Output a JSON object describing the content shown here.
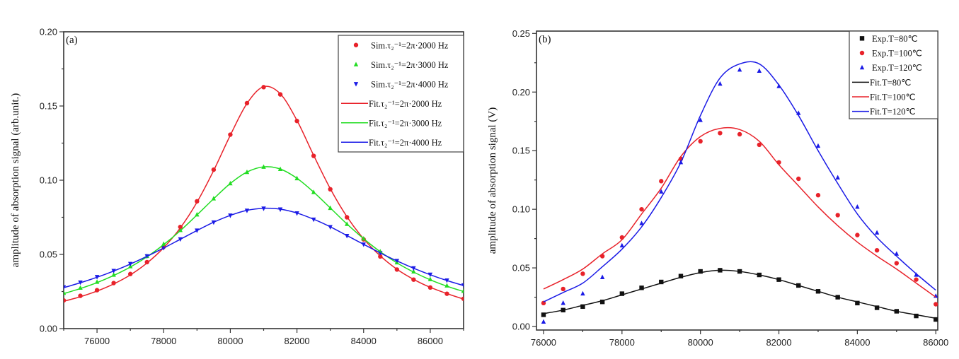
{
  "chart_data": [
    {
      "type": "scatter",
      "panel_label": "(a)",
      "xlabel": "",
      "ylabel": "amplitude of absorption signal (arb.unit.)",
      "xlim": [
        75000,
        87000
      ],
      "ylim": [
        0,
        0.2
      ],
      "xticks": [
        76000,
        78000,
        80000,
        82000,
        84000,
        86000
      ],
      "xtick_labels": [
        "76000",
        "78000",
        "80000",
        "82000",
        "84000",
        "86000"
      ],
      "yticks": [
        0,
        0.05,
        0.1,
        0.15,
        0.2
      ],
      "ytick_labels": [
        "0.00",
        "0.05",
        "0.10",
        "0.15",
        "0.20"
      ],
      "grid": false,
      "legend_position": "top-right",
      "x": [
        75000,
        75500,
        76000,
        76500,
        77000,
        77500,
        78000,
        78500,
        79000,
        79500,
        80000,
        80500,
        81000,
        81500,
        82000,
        82500,
        83000,
        83500,
        84000,
        84500,
        85000,
        85500,
        86000,
        86500,
        87000
      ],
      "series": [
        {
          "name": "Sim.τ₂⁻¹=2π·2000 Hz",
          "kind": "marker",
          "marker": "circle",
          "color": "#e8222a",
          "values": [
            0.019,
            0.0221,
            0.0259,
            0.0307,
            0.0368,
            0.0448,
            0.0551,
            0.0685,
            0.0858,
            0.1071,
            0.1307,
            0.1519,
            0.1627,
            0.1578,
            0.1399,
            0.1164,
            0.0939,
            0.075,
            0.0601,
            0.0486,
            0.0398,
            0.033,
            0.0277,
            0.0235,
            0.0201
          ]
        },
        {
          "name": "Sim.τ₂⁻¹=2π·3000 Hz",
          "kind": "marker",
          "marker": "triangle-up",
          "color": "#22dd22",
          "values": [
            0.024,
            0.0274,
            0.0314,
            0.0362,
            0.0419,
            0.0488,
            0.057,
            0.0663,
            0.0768,
            0.0876,
            0.0978,
            0.1054,
            0.1089,
            0.1074,
            0.1012,
            0.0919,
            0.0812,
            0.0704,
            0.0606,
            0.0519,
            0.0445,
            0.0384,
            0.0332,
            0.0289,
            0.0253
          ]
        },
        {
          "name": "Sim.τ₂⁻¹=2π·4000 Hz",
          "kind": "marker",
          "marker": "triangle-down",
          "color": "#1a1ae6",
          "values": [
            0.028,
            0.0312,
            0.0349,
            0.039,
            0.0437,
            0.0489,
            0.0544,
            0.0603,
            0.0662,
            0.0717,
            0.0763,
            0.0796,
            0.081,
            0.0804,
            0.0778,
            0.0736,
            0.0685,
            0.0626,
            0.0568,
            0.051,
            0.0457,
            0.0408,
            0.0365,
            0.0326,
            0.0293
          ]
        },
        {
          "name": "Fit.τ₂⁻¹=2π·2000 Hz",
          "kind": "line",
          "color": "#e8222a",
          "values": [
            0.0184,
            0.0215,
            0.0253,
            0.0301,
            0.0362,
            0.0442,
            0.0545,
            0.0679,
            0.0852,
            0.1065,
            0.1303,
            0.1517,
            0.163,
            0.1582,
            0.1403,
            0.1168,
            0.0943,
            0.0754,
            0.0605,
            0.049,
            0.04,
            0.0332,
            0.0278,
            0.0236,
            0.0199
          ]
        },
        {
          "name": "Fit.τ₂⁻¹=2π·3000 Hz",
          "kind": "line",
          "color": "#22dd22",
          "values": [
            0.0236,
            0.027,
            0.031,
            0.0358,
            0.0415,
            0.0484,
            0.0566,
            0.066,
            0.0766,
            0.0875,
            0.0978,
            0.1055,
            0.109,
            0.1075,
            0.1013,
            0.092,
            0.0813,
            0.0705,
            0.0606,
            0.0518,
            0.0443,
            0.0381,
            0.0329,
            0.0286,
            0.025
          ]
        },
        {
          "name": "Fit.τ₂⁻¹=2π·4000 Hz",
          "kind": "line",
          "color": "#1a1ae6",
          "values": [
            0.0276,
            0.0309,
            0.0346,
            0.0388,
            0.0435,
            0.0487,
            0.0543,
            0.0602,
            0.0661,
            0.0717,
            0.0763,
            0.0797,
            0.0811,
            0.0805,
            0.0779,
            0.0737,
            0.0686,
            0.0627,
            0.0568,
            0.051,
            0.0456,
            0.0407,
            0.0363,
            0.0324,
            0.029
          ]
        }
      ]
    },
    {
      "type": "scatter",
      "panel_label": "(b)",
      "xlabel": "",
      "ylabel": "amplitude of absorption signal (V)",
      "xlim": [
        75820,
        86050
      ],
      "ylim": [
        -0.003,
        0.252
      ],
      "xticks": [
        76000,
        78000,
        80000,
        82000,
        84000,
        86000
      ],
      "xtick_labels": [
        "76000",
        "78000",
        "80000",
        "82000",
        "84000",
        "86000"
      ],
      "yticks": [
        0,
        0.05,
        0.1,
        0.15,
        0.2,
        0.25
      ],
      "ytick_labels": [
        "0.00",
        "0.05",
        "0.10",
        "0.15",
        "0.20",
        "0.25"
      ],
      "grid": false,
      "legend_position": "top-right",
      "x": [
        76000,
        76500,
        77000,
        77500,
        78000,
        78500,
        79000,
        79500,
        80000,
        80500,
        81000,
        81500,
        82000,
        82500,
        83000,
        83500,
        84000,
        84500,
        85000,
        85500,
        86000
      ],
      "series": [
        {
          "name": "Exp.T=80℃",
          "kind": "marker",
          "marker": "square",
          "color": "#111111",
          "values": [
            0.01,
            0.014,
            0.017,
            0.021,
            0.028,
            0.033,
            0.038,
            0.043,
            0.047,
            0.048,
            0.047,
            0.044,
            0.04,
            0.035,
            0.03,
            0.025,
            0.02,
            0.016,
            0.013,
            0.009,
            0.006
          ]
        },
        {
          "name": "Exp.T=100℃",
          "kind": "marker",
          "marker": "circle",
          "color": "#e8222a",
          "values": [
            0.02,
            0.032,
            0.045,
            0.06,
            0.076,
            0.1,
            0.124,
            0.143,
            0.158,
            0.165,
            0.164,
            0.155,
            0.14,
            0.126,
            0.112,
            0.095,
            0.078,
            0.065,
            0.054,
            0.04,
            0.019
          ]
        },
        {
          "name": "Exp.T=120℃",
          "kind": "marker",
          "marker": "triangle-up",
          "color": "#1a1ae6",
          "values": [
            0.004,
            0.02,
            0.028,
            0.042,
            0.069,
            0.088,
            0.115,
            0.14,
            0.176,
            0.207,
            0.219,
            0.218,
            0.205,
            0.182,
            0.154,
            0.127,
            0.102,
            0.08,
            0.062,
            0.044,
            0.026
          ]
        },
        {
          "name": "Fit.T=80℃",
          "kind": "line",
          "color": "#111111",
          "values": [
            0.011,
            0.014,
            0.018,
            0.022,
            0.027,
            0.032,
            0.037,
            0.042,
            0.046,
            0.048,
            0.047,
            0.044,
            0.04,
            0.035,
            0.03,
            0.025,
            0.021,
            0.017,
            0.013,
            0.01,
            0.007
          ]
        },
        {
          "name": "Fit.T=100℃",
          "kind": "line",
          "color": "#e8222a",
          "values": [
            0.032,
            0.04,
            0.049,
            0.062,
            0.074,
            0.096,
            0.118,
            0.145,
            0.162,
            0.169,
            0.168,
            0.158,
            0.138,
            0.12,
            0.102,
            0.086,
            0.072,
            0.06,
            0.049,
            0.037,
            0.025
          ]
        },
        {
          "name": "Fit.T=120℃",
          "kind": "line",
          "color": "#1a1ae6",
          "values": [
            0.021,
            0.029,
            0.037,
            0.051,
            0.066,
            0.085,
            0.11,
            0.14,
            0.18,
            0.212,
            0.224,
            0.224,
            0.206,
            0.18,
            0.15,
            0.122,
            0.096,
            0.076,
            0.06,
            0.045,
            0.031
          ]
        }
      ]
    }
  ]
}
